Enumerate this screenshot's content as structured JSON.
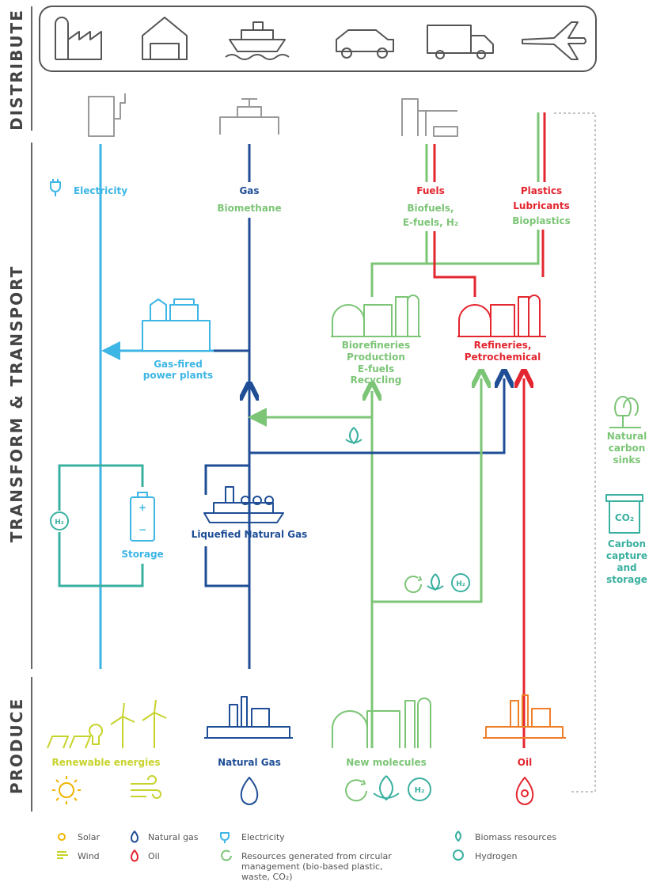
{
  "sections": {
    "distribute": "DISTRIBUTE",
    "transform": "TRANSFORM & TRANSPORT",
    "produce": "PRODUCE"
  },
  "carriers": {
    "electricity": "Electricity",
    "gas": [
      "Gas",
      "Biomethane"
    ],
    "fuels": [
      "Fuels",
      "Biofuels,",
      "E-fuels, H₂"
    ],
    "plastics": [
      "Plastics",
      "Lubricants",
      "Bioplastics"
    ]
  },
  "transform": {
    "gas_power": [
      "Gas-fired",
      "power plants"
    ],
    "biorefineries": [
      "Biorefineries",
      "Production",
      "E-fuels",
      "Recycling"
    ],
    "refineries": [
      "Refineries,",
      "Petrochemical"
    ],
    "storage": "Storage",
    "lng": "Liquefied Natural Gas"
  },
  "side": {
    "sinks": [
      "Natural",
      "carbon",
      "sinks"
    ],
    "ccs": [
      "Carbon",
      "capture",
      "and",
      "storage"
    ]
  },
  "produce": [
    "Renewable energies",
    "Natural Gas",
    "New molecules",
    "Oil"
  ],
  "icon_text": {
    "h2": "H₂",
    "co2": "CO₂",
    "plus": "+",
    "minus": "−"
  },
  "legend": {
    "solar": "Solar",
    "wind": "Wind",
    "natural_gas": "Natural gas",
    "oil": "Oil",
    "electricity": "Electricity",
    "circular": [
      "Resources generated from circular",
      "management (bio-based plastic,",
      "waste, CO₂)"
    ],
    "biomass": "Biomass resources",
    "hydrogen": "Hydrogen"
  }
}
